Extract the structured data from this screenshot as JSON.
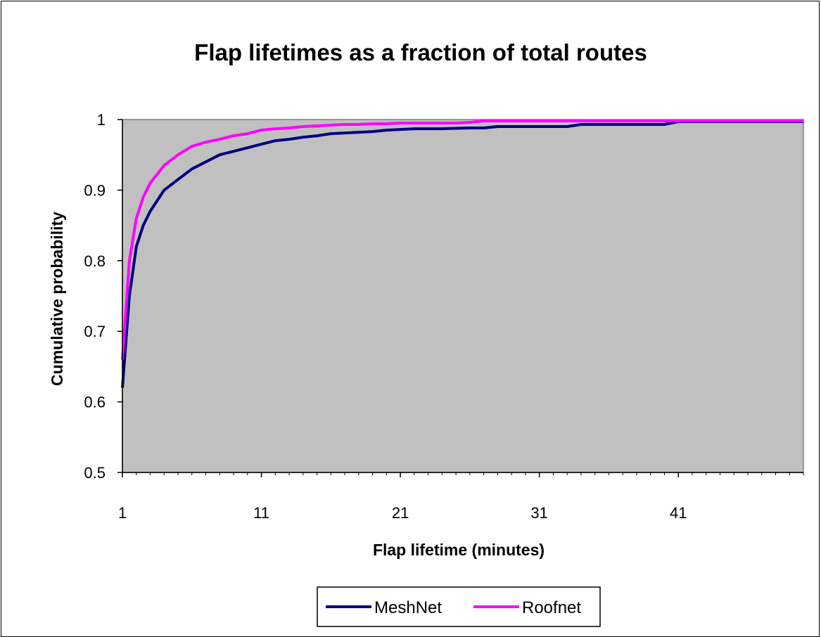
{
  "chart_data": {
    "type": "line",
    "title": "Flap lifetimes as a fraction of total routes",
    "xlabel": "Flap lifetime (minutes)",
    "ylabel": "Cumulative probability",
    "xlim": [
      1,
      50
    ],
    "ylim": [
      0.5,
      1
    ],
    "x_ticks": [
      1,
      11,
      21,
      31,
      41
    ],
    "y_ticks": [
      0.5,
      0.6,
      0.7,
      0.8,
      0.9,
      1
    ],
    "y_tick_labels": [
      "0.5",
      "0.6",
      "0.7",
      "0.8",
      "0.9",
      "1"
    ],
    "x_tick_labels": [
      "1",
      "11",
      "21",
      "31",
      "41"
    ],
    "grid": false,
    "plot_background": "#c0c0c0",
    "legend_position": "bottom",
    "series": [
      {
        "name": "MeshNet",
        "color": "#000080",
        "x": [
          1,
          1.5,
          2,
          2.5,
          3,
          4,
          5,
          6,
          7,
          8,
          9,
          10,
          11,
          12,
          13,
          14,
          15,
          16,
          17,
          18,
          19,
          20,
          21,
          22,
          24,
          26,
          27,
          28,
          30,
          32,
          33,
          34,
          36,
          38,
          39,
          40,
          41,
          43,
          45,
          47,
          49,
          50
        ],
        "y": [
          0.62,
          0.75,
          0.82,
          0.85,
          0.87,
          0.9,
          0.915,
          0.93,
          0.94,
          0.95,
          0.955,
          0.96,
          0.965,
          0.97,
          0.972,
          0.975,
          0.977,
          0.98,
          0.981,
          0.982,
          0.983,
          0.985,
          0.986,
          0.987,
          0.987,
          0.988,
          0.988,
          0.99,
          0.99,
          0.99,
          0.99,
          0.993,
          0.993,
          0.993,
          0.993,
          0.993,
          0.997,
          0.997,
          0.997,
          0.997,
          0.997,
          0.997
        ]
      },
      {
        "name": "Roofnet",
        "color": "#ff00ff",
        "x": [
          1,
          1.5,
          2,
          2.5,
          3,
          4,
          5,
          6,
          7,
          8,
          9,
          10,
          11,
          12,
          13,
          14,
          15,
          16,
          17,
          18,
          19,
          20,
          21,
          23,
          25,
          26,
          27,
          30,
          35,
          40,
          45,
          50
        ],
        "y": [
          0.66,
          0.8,
          0.86,
          0.89,
          0.91,
          0.935,
          0.95,
          0.962,
          0.968,
          0.972,
          0.977,
          0.98,
          0.985,
          0.987,
          0.988,
          0.99,
          0.991,
          0.992,
          0.993,
          0.993,
          0.994,
          0.994,
          0.995,
          0.995,
          0.995,
          0.996,
          0.998,
          0.998,
          0.998,
          0.998,
          0.998,
          0.998
        ]
      }
    ]
  }
}
